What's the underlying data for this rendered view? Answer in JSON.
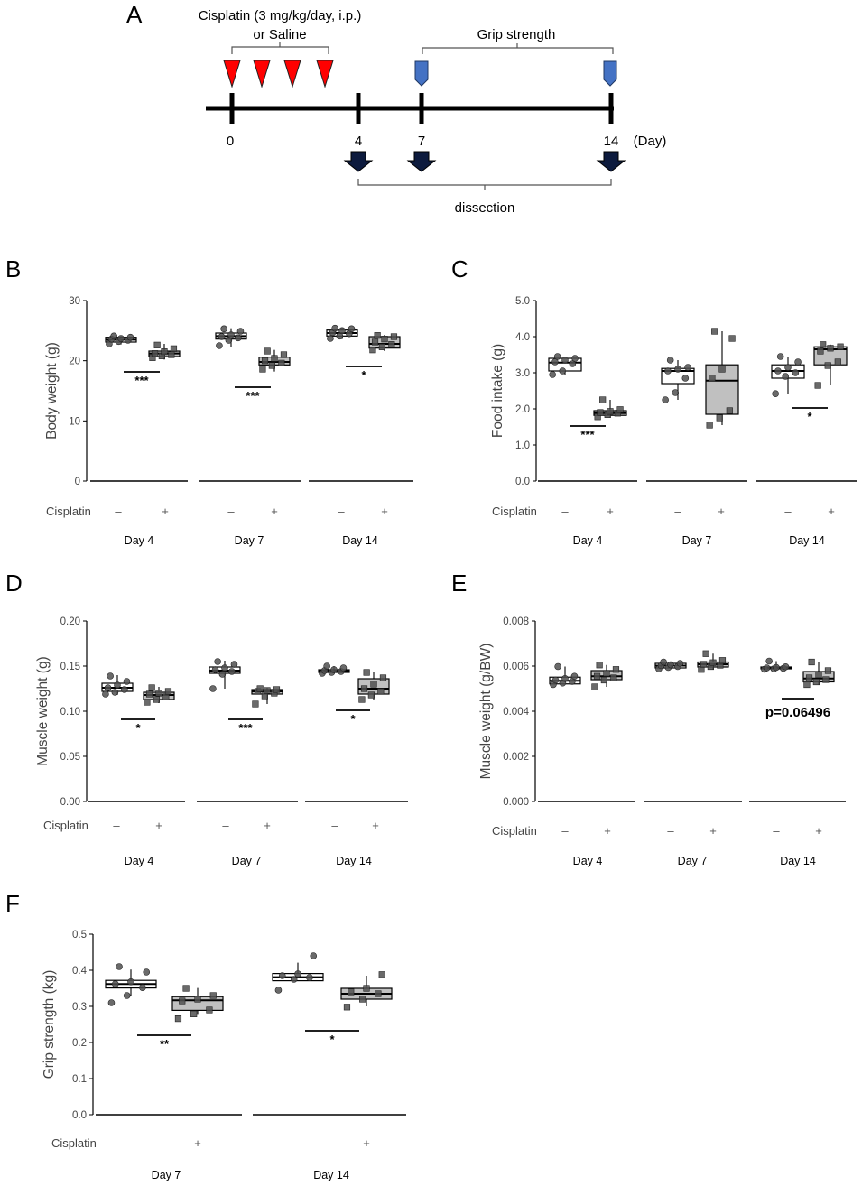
{
  "figure": {
    "panels": {
      "A": "A",
      "B": "B",
      "C": "C",
      "D": "D",
      "E": "E",
      "F": "F"
    }
  },
  "schematic": {
    "treatment_line1": "Cisplatin (3 mg/kg/day, i.p.)",
    "treatment_line2": "or Saline",
    "grip_label": "Grip strength",
    "dissection_label": "dissection",
    "days": [
      "0",
      "4",
      "7",
      "14"
    ],
    "day_unit": "(Day)",
    "colors": {
      "injection": "#ff0000",
      "grip_marker": "#4472c4",
      "dissection_arrow": "#0d1b3e"
    }
  },
  "common": {
    "cisplatin_label": "Cisplatin",
    "minus": "–",
    "plus": "+",
    "colors": {
      "saline_box": "#ffffff",
      "cisplatin_box": "#c0c0c0",
      "points": "#505050"
    }
  },
  "chart_data": [
    {
      "id": "B",
      "type": "box",
      "ylabel": "Body weight (g)",
      "ylim": [
        0,
        30
      ],
      "yticks": [
        "0",
        "10",
        "20",
        "30"
      ],
      "groups": [
        {
          "day": "Day 4",
          "saline": {
            "q1": 23.1,
            "median": 23.5,
            "q3": 23.9,
            "min": 22.7,
            "max": 24.1,
            "points": [
              22.8,
              23.2,
              23.4,
              23.6,
              23.7,
              23.9,
              24.1
            ]
          },
          "cisplatin": {
            "q1": 20.7,
            "median": 21.2,
            "q3": 21.6,
            "min": 20.2,
            "max": 22.8,
            "points": [
              20.5,
              20.8,
              21.0,
              21.2,
              21.5,
              22.0,
              22.6
            ]
          },
          "sig": "***"
        },
        {
          "day": "Day 7",
          "saline": {
            "q1": 23.6,
            "median": 24.1,
            "q3": 24.6,
            "min": 22.3,
            "max": 25.4,
            "points": [
              22.5,
              23.4,
              23.8,
              24.0,
              24.3,
              24.9,
              25.3
            ]
          },
          "cisplatin": {
            "q1": 19.3,
            "median": 19.8,
            "q3": 20.6,
            "min": 18.2,
            "max": 21.8,
            "points": [
              18.6,
              19.2,
              19.6,
              20.0,
              20.4,
              21.0,
              21.6
            ]
          },
          "sig": "***"
        },
        {
          "day": "Day 14",
          "saline": {
            "q1": 24.1,
            "median": 24.6,
            "q3": 25.1,
            "min": 23.6,
            "max": 25.5,
            "points": [
              23.7,
              24.1,
              24.5,
              24.7,
              25.0,
              25.3,
              25.4
            ]
          },
          "cisplatin": {
            "q1": 22.1,
            "median": 22.8,
            "q3": 24.0,
            "min": 21.6,
            "max": 24.3,
            "points": [
              21.8,
              22.3,
              22.7,
              23.1,
              23.6,
              24.0,
              24.2
            ]
          },
          "sig": "*"
        }
      ]
    },
    {
      "id": "C",
      "type": "box",
      "ylabel": "Food intake (g)",
      "ylim": [
        0,
        5
      ],
      "yticks": [
        "0.0",
        "1.0",
        "2.0",
        "3.0",
        "4.0",
        "5.0"
      ],
      "groups": [
        {
          "day": "Day 4",
          "saline": {
            "q1": 3.05,
            "median": 3.28,
            "q3": 3.4,
            "min": 2.95,
            "max": 3.45,
            "points": [
              2.95,
              3.05,
              3.25,
              3.3,
              3.35,
              3.4,
              3.45
            ]
          },
          "cisplatin": {
            "q1": 1.82,
            "median": 1.88,
            "q3": 1.95,
            "min": 1.75,
            "max": 2.25,
            "points": [
              1.78,
              1.84,
              1.88,
              1.9,
              1.93,
              1.98,
              2.25
            ]
          },
          "sig": "***"
        },
        {
          "day": "Day 7",
          "saline": {
            "q1": 2.7,
            "median": 3.05,
            "q3": 3.12,
            "min": 2.25,
            "max": 3.35,
            "points": [
              2.25,
              2.45,
              2.85,
              3.05,
              3.1,
              3.15,
              3.35
            ]
          },
          "cisplatin": {
            "q1": 1.85,
            "median": 2.78,
            "q3": 3.22,
            "min": 1.55,
            "max": 4.15,
            "points": [
              1.55,
              1.75,
              1.95,
              2.85,
              3.1,
              3.95,
              4.15
            ]
          },
          "sig": ""
        },
        {
          "day": "Day 14",
          "saline": {
            "q1": 2.85,
            "median": 3.05,
            "q3": 3.22,
            "min": 2.42,
            "max": 3.45,
            "points": [
              2.42,
              2.9,
              3.0,
              3.05,
              3.15,
              3.3,
              3.45
            ]
          },
          "cisplatin": {
            "q1": 3.22,
            "median": 3.65,
            "q3": 3.72,
            "min": 2.65,
            "max": 3.78,
            "points": [
              2.65,
              3.2,
              3.3,
              3.6,
              3.68,
              3.72,
              3.78
            ]
          },
          "sig": "*"
        }
      ]
    },
    {
      "id": "D",
      "type": "box",
      "ylabel": "Muscle weight (g)",
      "ylim": [
        0,
        0.2
      ],
      "yticks": [
        "0.00",
        "0.05",
        "0.10",
        "0.15",
        "0.20"
      ],
      "groups": [
        {
          "day": "Day 4",
          "saline": {
            "q1": 0.122,
            "median": 0.126,
            "q3": 0.131,
            "min": 0.118,
            "max": 0.14,
            "points": [
              0.119,
              0.121,
              0.124,
              0.126,
              0.129,
              0.133,
              0.139
            ]
          },
          "cisplatin": {
            "q1": 0.113,
            "median": 0.118,
            "q3": 0.121,
            "min": 0.109,
            "max": 0.127,
            "points": [
              0.11,
              0.113,
              0.116,
              0.119,
              0.12,
              0.122,
              0.126
            ]
          },
          "sig": "*"
        },
        {
          "day": "Day 7",
          "saline": {
            "q1": 0.142,
            "median": 0.145,
            "q3": 0.149,
            "min": 0.125,
            "max": 0.156,
            "points": [
              0.125,
              0.141,
              0.144,
              0.146,
              0.148,
              0.152,
              0.155
            ]
          },
          "cisplatin": {
            "q1": 0.119,
            "median": 0.122,
            "q3": 0.124,
            "min": 0.108,
            "max": 0.126,
            "points": [
              0.108,
              0.117,
              0.12,
              0.122,
              0.123,
              0.124,
              0.125
            ]
          },
          "sig": "***"
        },
        {
          "day": "Day 14",
          "saline": {
            "q1": 0.143,
            "median": 0.145,
            "q3": 0.146,
            "min": 0.142,
            "max": 0.15,
            "points": [
              0.142,
              0.143,
              0.144,
              0.145,
              0.146,
              0.148,
              0.15
            ]
          },
          "cisplatin": {
            "q1": 0.119,
            "median": 0.125,
            "q3": 0.136,
            "min": 0.113,
            "max": 0.144,
            "points": [
              0.113,
              0.118,
              0.122,
              0.125,
              0.13,
              0.137,
              0.143
            ]
          },
          "sig": "*"
        }
      ]
    },
    {
      "id": "E",
      "type": "box",
      "ylabel": "Muscle weight (g/BW)",
      "ylim": [
        0,
        0.008
      ],
      "yticks": [
        "0.000",
        "0.002",
        "0.004",
        "0.006",
        "0.008"
      ],
      "groups": [
        {
          "day": "Day 4",
          "saline": {
            "q1": 0.00521,
            "median": 0.00535,
            "q3": 0.00551,
            "min": 0.00518,
            "max": 0.00598,
            "points": [
              0.00518,
              0.00525,
              0.00532,
              0.00538,
              0.00545,
              0.00555,
              0.00598
            ]
          },
          "cisplatin": {
            "q1": 0.0054,
            "median": 0.00555,
            "q3": 0.0058,
            "min": 0.00508,
            "max": 0.00605,
            "points": [
              0.00508,
              0.00538,
              0.00548,
              0.00555,
              0.00568,
              0.00585,
              0.00605
            ]
          },
          "sig": ""
        },
        {
          "day": "Day 7",
          "saline": {
            "q1": 0.00592,
            "median": 0.00602,
            "q3": 0.00612,
            "min": 0.00588,
            "max": 0.00618,
            "points": [
              0.00588,
              0.00594,
              0.00598,
              0.00602,
              0.00606,
              0.00612,
              0.00618
            ]
          },
          "cisplatin": {
            "q1": 0.00596,
            "median": 0.00608,
            "q3": 0.00618,
            "min": 0.00585,
            "max": 0.00655,
            "points": [
              0.00585,
              0.00598,
              0.00604,
              0.00608,
              0.00615,
              0.00625,
              0.00655
            ]
          },
          "sig": ""
        },
        {
          "day": "Day 14",
          "saline": {
            "q1": 0.00588,
            "median": 0.00592,
            "q3": 0.00596,
            "min": 0.00586,
            "max": 0.00622,
            "points": [
              0.00586,
              0.00588,
              0.0059,
              0.00592,
              0.00594,
              0.00597,
              0.00622
            ]
          },
          "cisplatin": {
            "q1": 0.0053,
            "median": 0.00545,
            "q3": 0.00576,
            "min": 0.00518,
            "max": 0.00618,
            "points": [
              0.00518,
              0.0053,
              0.0054,
              0.00548,
              0.00562,
              0.0058,
              0.00618
            ]
          },
          "sig": "p=0.06496"
        }
      ]
    },
    {
      "id": "F",
      "type": "box",
      "ylabel": "Grip strength (kg)",
      "ylim": [
        0,
        0.5
      ],
      "yticks": [
        "0.0",
        "0.1",
        "0.2",
        "0.3",
        "0.4",
        "0.5"
      ],
      "groups": [
        {
          "day": "Day 7",
          "saline": {
            "q1": 0.351,
            "median": 0.362,
            "q3": 0.372,
            "min": 0.33,
            "max": 0.402,
            "points": [
              0.31,
              0.33,
              0.352,
              0.362,
              0.368,
              0.395,
              0.41
            ]
          },
          "cisplatin": {
            "q1": 0.289,
            "median": 0.317,
            "q3": 0.327,
            "min": 0.279,
            "max": 0.351,
            "points": [
              0.266,
              0.279,
              0.29,
              0.315,
              0.32,
              0.33,
              0.35
            ]
          },
          "sig": "**"
        },
        {
          "day": "Day 14",
          "saline": {
            "q1": 0.371,
            "median": 0.381,
            "q3": 0.391,
            "min": 0.371,
            "max": 0.421,
            "points": [
              0.345,
              0.375,
              0.38,
              0.385,
              0.39,
              0.44
            ]
          },
          "cisplatin": {
            "q1": 0.32,
            "median": 0.335,
            "q3": 0.35,
            "min": 0.3,
            "max": 0.385,
            "points": [
              0.298,
              0.32,
              0.335,
              0.34,
              0.35,
              0.388
            ]
          },
          "sig": "*"
        }
      ]
    }
  ]
}
